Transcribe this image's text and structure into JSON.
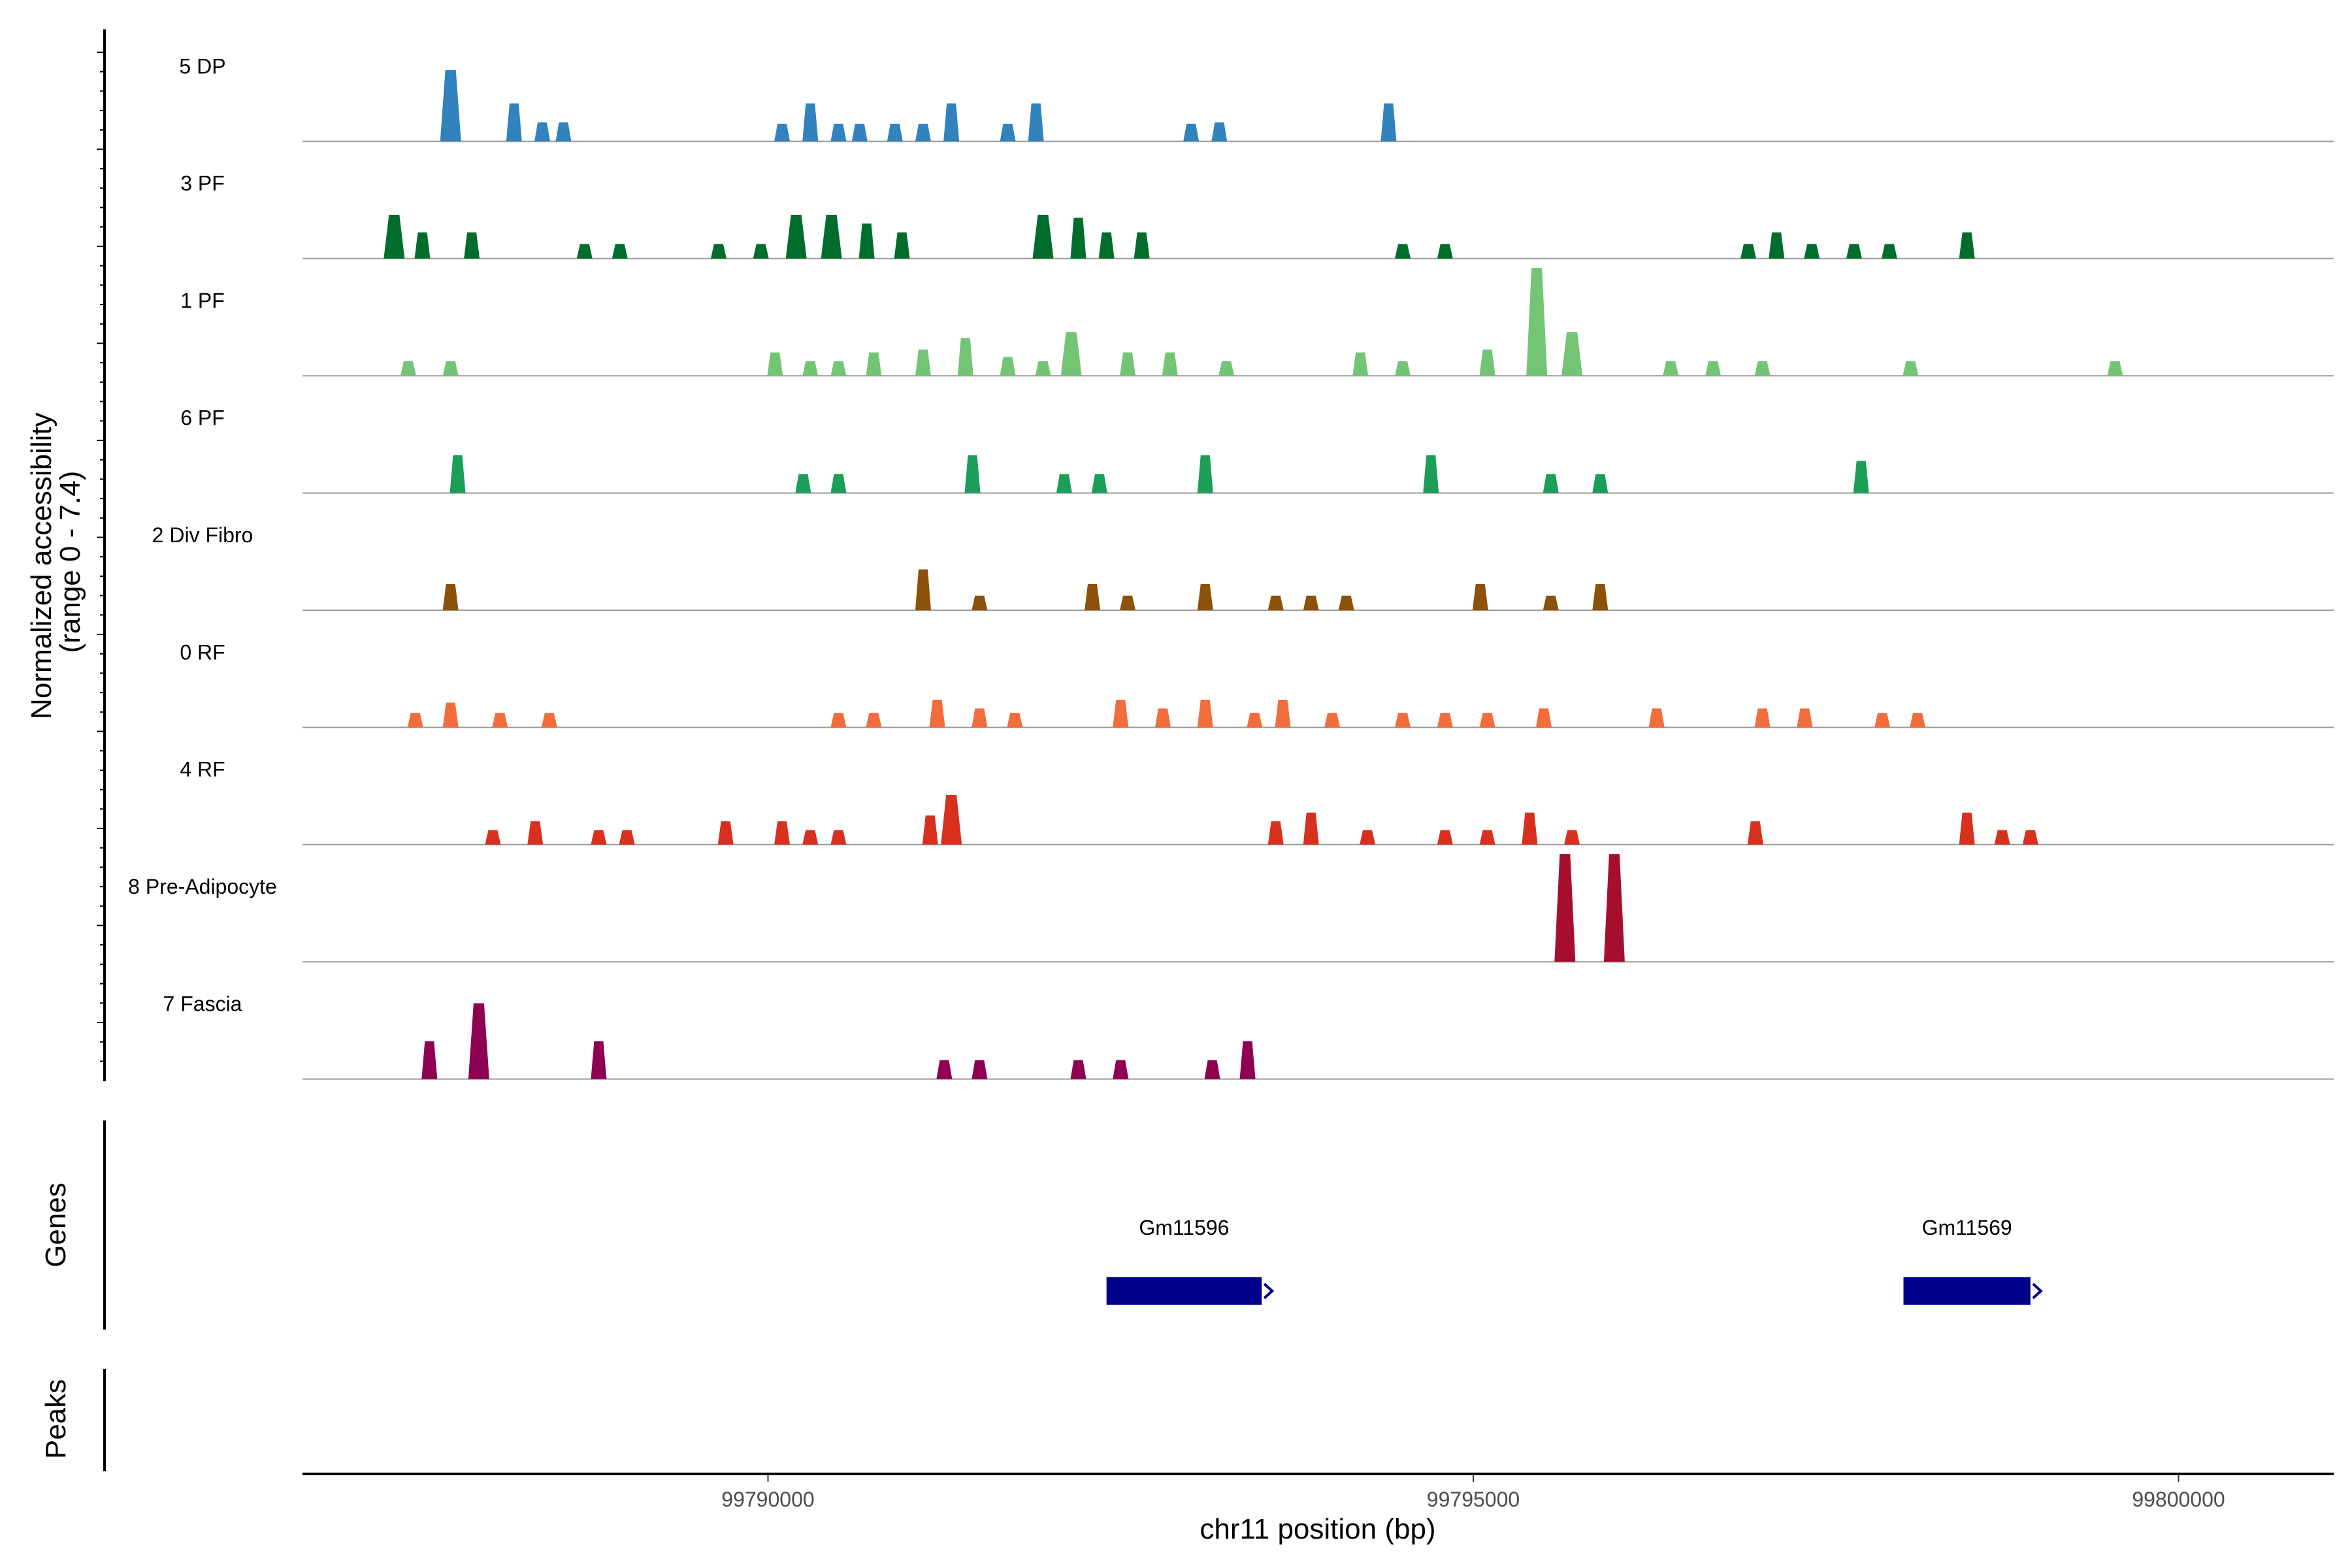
{
  "chart_data": {
    "type": "area",
    "title": "",
    "ylabel_line1": "Normalized accessibility",
    "ylabel_line2": "(range 0 - 7.4)",
    "ylim": [
      0,
      7.4
    ],
    "xlabel": "chr11 position (bp)",
    "xlim": [
      99786700,
      99801100
    ],
    "xticks": [
      {
        "value": 99790000,
        "label": "99790000"
      },
      {
        "value": 99795000,
        "label": "99795000"
      },
      {
        "value": 99800000,
        "label": "99800000"
      }
    ],
    "series": [
      {
        "name": "5 DP",
        "color": "#3182bd",
        "peaks": [
          [
            99787750,
            4.9
          ],
          [
            99788200,
            2.6
          ],
          [
            99788400,
            1.3
          ],
          [
            99788550,
            1.3
          ],
          [
            99790100,
            1.2
          ],
          [
            99790300,
            2.6
          ],
          [
            99790500,
            1.2
          ],
          [
            99790650,
            1.2
          ],
          [
            99790900,
            1.2
          ],
          [
            99791100,
            1.2
          ],
          [
            99791300,
            2.6
          ],
          [
            99791700,
            1.2
          ],
          [
            99791900,
            2.6
          ],
          [
            99793000,
            1.2
          ],
          [
            99793200,
            1.3
          ],
          [
            99794400,
            2.6
          ]
        ]
      },
      {
        "name": "3 PF",
        "color": "#006d2c",
        "peaks": [
          [
            99787350,
            3.0
          ],
          [
            99787550,
            1.8
          ],
          [
            99787900,
            1.8
          ],
          [
            99788700,
            1.0
          ],
          [
            99788950,
            1.0
          ],
          [
            99789650,
            1.0
          ],
          [
            99789950,
            1.0
          ],
          [
            99790200,
            3.0
          ],
          [
            99790450,
            3.0
          ],
          [
            99790700,
            2.4
          ],
          [
            99790950,
            1.8
          ],
          [
            99791950,
            3.0
          ],
          [
            99792200,
            2.8
          ],
          [
            99792400,
            1.8
          ],
          [
            99792650,
            1.8
          ],
          [
            99794500,
            1.0
          ],
          [
            99794800,
            1.0
          ],
          [
            99796950,
            1.0
          ],
          [
            99797150,
            1.8
          ],
          [
            99797400,
            1.0
          ],
          [
            99797700,
            1.0
          ],
          [
            99797950,
            1.0
          ],
          [
            99798500,
            1.8
          ]
        ]
      },
      {
        "name": "1 PF",
        "color": "#74c476",
        "peaks": [
          [
            99787450,
            1.0
          ],
          [
            99787750,
            1.0
          ],
          [
            99790050,
            1.6
          ],
          [
            99790300,
            1.0
          ],
          [
            99790500,
            1.0
          ],
          [
            99790750,
            1.6
          ],
          [
            99791100,
            1.8
          ],
          [
            99791400,
            2.6
          ],
          [
            99791700,
            1.3
          ],
          [
            99791950,
            1.0
          ],
          [
            99792150,
            3.0
          ],
          [
            99792550,
            1.6
          ],
          [
            99792850,
            1.6
          ],
          [
            99793250,
            1.0
          ],
          [
            99794200,
            1.6
          ],
          [
            99794500,
            1.0
          ],
          [
            99795100,
            1.8
          ],
          [
            99795450,
            7.4
          ],
          [
            99795700,
            3.0
          ],
          [
            99796400,
            1.0
          ],
          [
            99796700,
            1.0
          ],
          [
            99797050,
            1.0
          ],
          [
            99798100,
            1.0
          ],
          [
            99799550,
            1.0
          ]
        ]
      },
      {
        "name": "6 PF",
        "color": "#1b9e57",
        "peaks": [
          [
            99787800,
            2.6
          ],
          [
            99790250,
            1.3
          ],
          [
            99790500,
            1.3
          ],
          [
            99791450,
            2.6
          ],
          [
            99792100,
            1.3
          ],
          [
            99792350,
            1.3
          ],
          [
            99793100,
            2.6
          ],
          [
            99794700,
            2.6
          ],
          [
            99795550,
            1.3
          ],
          [
            99795900,
            1.3
          ],
          [
            99797750,
            2.2
          ]
        ]
      },
      {
        "name": "2 Div Fibro",
        "color": "#8c510a",
        "peaks": [
          [
            99787750,
            1.8
          ],
          [
            99791100,
            2.8
          ],
          [
            99791500,
            1.0
          ],
          [
            99792300,
            1.8
          ],
          [
            99792550,
            1.0
          ],
          [
            99793100,
            1.8
          ],
          [
            99793600,
            1.0
          ],
          [
            99793850,
            1.0
          ],
          [
            99794100,
            1.0
          ],
          [
            99795050,
            1.8
          ],
          [
            99795550,
            1.0
          ],
          [
            99795900,
            1.8
          ]
        ]
      },
      {
        "name": "0 RF",
        "color": "#f16d3c",
        "peaks": [
          [
            99787500,
            1.0
          ],
          [
            99787750,
            1.7
          ],
          [
            99788100,
            1.0
          ],
          [
            99788450,
            1.0
          ],
          [
            99790500,
            1.0
          ],
          [
            99790750,
            1.0
          ],
          [
            99791200,
            1.9
          ],
          [
            99791500,
            1.3
          ],
          [
            99791750,
            1.0
          ],
          [
            99792500,
            1.9
          ],
          [
            99792800,
            1.3
          ],
          [
            99793100,
            1.9
          ],
          [
            99793450,
            1.0
          ],
          [
            99793650,
            1.9
          ],
          [
            99794000,
            1.0
          ],
          [
            99794500,
            1.0
          ],
          [
            99794800,
            1.0
          ],
          [
            99795100,
            1.0
          ],
          [
            99795500,
            1.3
          ],
          [
            99796300,
            1.3
          ],
          [
            99797050,
            1.3
          ],
          [
            99797350,
            1.3
          ],
          [
            99797900,
            1.0
          ],
          [
            99798150,
            1.0
          ]
        ]
      },
      {
        "name": "4 RF",
        "color": "#d7301f",
        "peaks": [
          [
            99788050,
            1.0
          ],
          [
            99788350,
            1.6
          ],
          [
            99788800,
            1.0
          ],
          [
            99789000,
            1.0
          ],
          [
            99789700,
            1.6
          ],
          [
            99790100,
            1.6
          ],
          [
            99790300,
            1.0
          ],
          [
            99790500,
            1.0
          ],
          [
            99791150,
            2.0
          ],
          [
            99791300,
            3.4
          ],
          [
            99793600,
            1.6
          ],
          [
            99793850,
            2.2
          ],
          [
            99794250,
            1.0
          ],
          [
            99794800,
            1.0
          ],
          [
            99795100,
            1.0
          ],
          [
            99795400,
            2.2
          ],
          [
            99795700,
            1.0
          ],
          [
            99797000,
            1.6
          ],
          [
            99798500,
            2.2
          ],
          [
            99798750,
            1.0
          ],
          [
            99798950,
            1.0
          ]
        ]
      },
      {
        "name": "8 Pre-Adipocyte",
        "color": "#a50f2d",
        "peaks": [
          [
            99795650,
            7.4
          ],
          [
            99796000,
            7.4
          ]
        ]
      },
      {
        "name": "7 Fascia",
        "color": "#8e0152",
        "peaks": [
          [
            99787600,
            2.6
          ],
          [
            99787950,
            5.2
          ],
          [
            99788800,
            2.6
          ],
          [
            99791250,
            1.3
          ],
          [
            99791500,
            1.3
          ],
          [
            99792200,
            1.3
          ],
          [
            99792500,
            1.3
          ],
          [
            99793150,
            1.3
          ],
          [
            99793400,
            2.6
          ]
        ]
      }
    ]
  },
  "genes_track": {
    "title": "Genes",
    "genes": [
      {
        "name": "Gm11596",
        "start": 99792400,
        "end": 99793500,
        "color": "#00008b"
      },
      {
        "name": "Gm11569",
        "start": 99798050,
        "end": 99798950,
        "color": "#00008b"
      }
    ]
  },
  "peaks_track": {
    "title": "Peaks"
  }
}
